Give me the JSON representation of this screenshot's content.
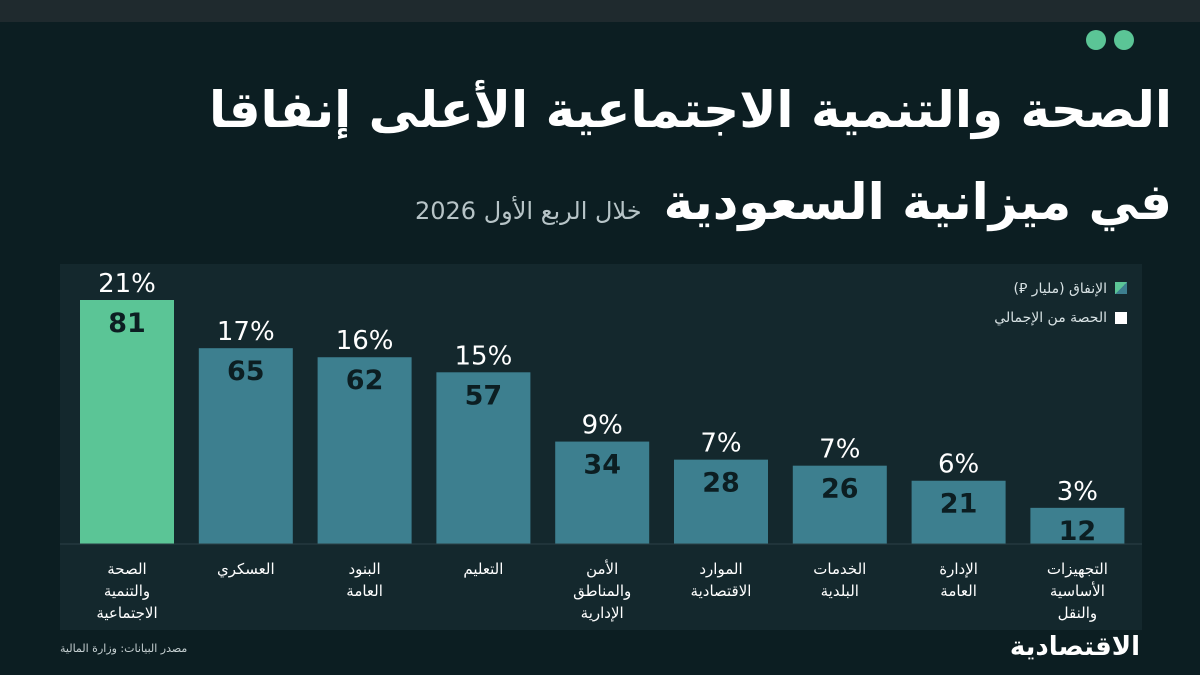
{
  "title_line1": "الصحة والتنمية الاجتماعية الأعلى إنفاقا",
  "title_line2": "في ميزانية السعودية",
  "subtitle": "خلال الربع الأول 2026",
  "legend": {
    "spending": "الإنفاق (مليار ⃁)",
    "share": "الحصة من الإجمالي"
  },
  "source": "مصدر البيانات: وزارة المالية",
  "logo": "الاقتصادية",
  "colors": {
    "highlight": "#5bc596",
    "bar": "#3d7f8f",
    "background": "#0c1e22"
  },
  "chart_data": {
    "type": "bar",
    "categories": [
      [
        "الصحة",
        "والتنمية",
        "الاجتماعية"
      ],
      [
        "العسكري"
      ],
      [
        "البنود",
        "العامة"
      ],
      [
        "التعليم"
      ],
      [
        "الأمن",
        "والمناطق",
        "الإدارية"
      ],
      [
        "الموارد",
        "الاقتصادية"
      ],
      [
        "الخدمات",
        "البلدية"
      ],
      [
        "الإدارة",
        "العامة"
      ],
      [
        "التجهيزات",
        "الأساسية",
        "والنقل"
      ]
    ],
    "series": [
      {
        "name": "الإنفاق (مليار ⃁)",
        "values": [
          81,
          65,
          62,
          57,
          34,
          28,
          26,
          21,
          12
        ]
      },
      {
        "name": "الحصة من الإجمالي",
        "values": [
          21,
          17,
          16,
          15,
          9,
          7,
          7,
          6,
          3
        ]
      }
    ],
    "share_labels": [
      "21%",
      "17%",
      "16%",
      "15%",
      "9%",
      "7%",
      "7%",
      "6%",
      "3%"
    ],
    "highlight_index": 0,
    "ylim": [
      0,
      81
    ],
    "grid": false,
    "legend_position": "top-right"
  }
}
